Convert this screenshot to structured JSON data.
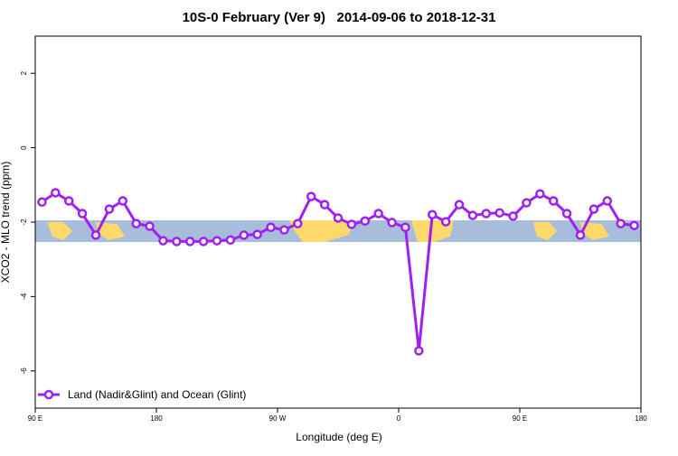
{
  "chart_data": {
    "type": "line",
    "title": "10S-0 February (Ver 9)   2014-09-06 to 2018-12-31",
    "xlabel": "Longitude (deg E)",
    "ylabel": "XCO2 - MLO trend (ppm)",
    "series": [
      {
        "name": "Land (Nadir&Glint) and Ocean (Glint)",
        "color": "#a020f0",
        "x": [
          95,
          105,
          115,
          125,
          135,
          145,
          155,
          165,
          175,
          185,
          195,
          205,
          215,
          225,
          235,
          245,
          255,
          265,
          275,
          285,
          295,
          305,
          315,
          325,
          335,
          345,
          355,
          365,
          375,
          385,
          395,
          405,
          415,
          425,
          435,
          445,
          455,
          465,
          475,
          485,
          495,
          505,
          515,
          525,
          535
        ],
        "values": [
          -1.46,
          -1.21,
          -1.43,
          -1.77,
          -2.35,
          -1.65,
          -1.43,
          -2.04,
          -2.11,
          -2.5,
          -2.52,
          -2.52,
          -2.52,
          -2.5,
          -2.48,
          -2.35,
          -2.33,
          -2.14,
          -2.21,
          -2.04,
          -1.31,
          -1.53,
          -1.89,
          -2.06,
          -1.97,
          -1.77,
          -2.01,
          -2.14,
          -5.46,
          -1.8,
          -1.99,
          -1.53,
          -1.82,
          -1.77,
          -1.75,
          -1.84,
          -1.48,
          -1.24,
          -1.43,
          -1.77,
          -2.35,
          -1.65,
          -1.43,
          -2.04,
          -2.09
        ]
      }
    ],
    "xlim": [
      90,
      540
    ],
    "xticks": [
      {
        "value": 90,
        "label": "90 E"
      },
      180,
      {
        "value": 270,
        "label": "90 W"
      },
      {
        "value": 360,
        "label": "0"
      },
      {
        "value": 450,
        "label": "90 E"
      },
      {
        "value": 540,
        "label": "180"
      }
    ],
    "ylim": [
      -7,
      3
    ],
    "yticks": [
      2,
      0,
      -2,
      -4,
      -6
    ],
    "legend": "bottom-left"
  }
}
